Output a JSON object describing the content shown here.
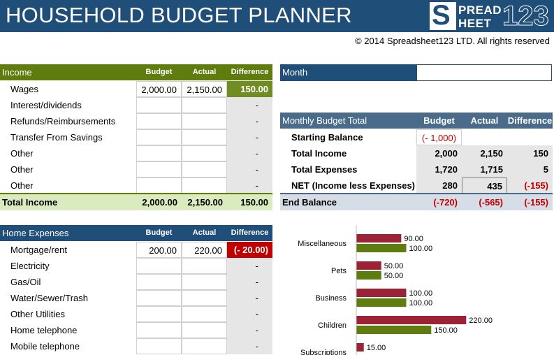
{
  "header": {
    "title": "HOUSEHOLD BUDGET PLANNER",
    "logo_s": "S",
    "logo_word1": "PREAD",
    "logo_word2": "HEET",
    "logo_num": "123",
    "copyright": "© 2014 Spreadsheet123 LTD. All rights reserved",
    "bar_color": "#1f4e79"
  },
  "columns": {
    "budget": "Budget",
    "actual": "Actual",
    "difference": "Difference"
  },
  "income": {
    "title": "Income",
    "rows": [
      {
        "label": "Wages",
        "budget": "2,000.00",
        "actual": "2,150.00",
        "difference": "150.00",
        "state": "pos"
      },
      {
        "label": "Interest/dividends",
        "budget": "",
        "actual": "",
        "difference": "-",
        "state": ""
      },
      {
        "label": "Refunds/Reimbursements",
        "budget": "",
        "actual": "",
        "difference": "-",
        "state": ""
      },
      {
        "label": "Transfer From Savings",
        "budget": "",
        "actual": "",
        "difference": "-",
        "state": ""
      },
      {
        "label": "Other",
        "budget": "",
        "actual": "",
        "difference": "-",
        "state": ""
      },
      {
        "label": "Other",
        "budget": "",
        "actual": "",
        "difference": "-",
        "state": ""
      },
      {
        "label": "Other",
        "budget": "",
        "actual": "",
        "difference": "-",
        "state": ""
      }
    ],
    "total": {
      "label": "Total Income",
      "budget": "2,000.00",
      "actual": "2,150.00",
      "difference": "150.00"
    }
  },
  "home_expenses": {
    "title": "Home Expenses",
    "rows": [
      {
        "label": "Mortgage/rent",
        "budget": "200.00",
        "actual": "220.00",
        "difference": "(- 20.00)",
        "state": "neg"
      },
      {
        "label": "Electricity",
        "budget": "",
        "actual": "",
        "difference": "-",
        "state": ""
      },
      {
        "label": "Gas/Oil",
        "budget": "",
        "actual": "",
        "difference": "-",
        "state": ""
      },
      {
        "label": "Water/Sewer/Trash",
        "budget": "",
        "actual": "",
        "difference": "-",
        "state": ""
      },
      {
        "label": "Other Utilities",
        "budget": "",
        "actual": "",
        "difference": "-",
        "state": ""
      },
      {
        "label": "Home telephone",
        "budget": "",
        "actual": "",
        "difference": "-",
        "state": ""
      },
      {
        "label": "Mobile telephone",
        "budget": "",
        "actual": "",
        "difference": "-",
        "state": ""
      }
    ]
  },
  "month": {
    "label": "Month",
    "value": ""
  },
  "summary": {
    "title": "Monthly Budget Total",
    "starting_balance": {
      "label": "Starting Balance",
      "budget": "(- 1,000)"
    },
    "rows": [
      {
        "label": "Total Income",
        "budget": "2,000",
        "actual": "2,150",
        "difference": "150",
        "red": false
      },
      {
        "label": "Total Expenses",
        "budget": "1,720",
        "actual": "1,715",
        "difference": "5",
        "red": false
      },
      {
        "label": "NET (Income less Expenses)",
        "budget": "280",
        "actual": "435",
        "difference": "(-155)",
        "red": true
      }
    ],
    "end": {
      "label": "End Balance",
      "budget": "(-720)",
      "actual": "(-565)",
      "difference": "(-155)"
    }
  },
  "chart_data": {
    "type": "bar",
    "orientation": "horizontal",
    "categories": [
      "Miscellaneous",
      "Pets",
      "Business",
      "Children",
      "Subscriptions"
    ],
    "series": [
      {
        "color": "#9b2335",
        "values": [
          90,
          50,
          100,
          220,
          15
        ]
      },
      {
        "color": "#5e7d0e",
        "values": [
          100,
          50,
          100,
          150,
          null
        ]
      }
    ],
    "value_labels": [
      [
        "90.00",
        "50.00",
        "100.00",
        "220.00",
        "15.00"
      ],
      [
        "100.00",
        "50.00",
        "100.00",
        "150.00",
        ""
      ]
    ],
    "xlim": [
      0,
      250
    ],
    "legend": "none",
    "grid": false
  }
}
